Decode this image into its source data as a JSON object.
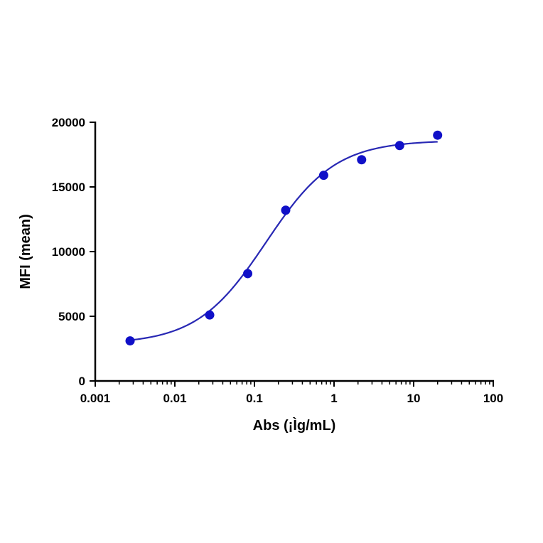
{
  "chart_data": {
    "type": "scatter",
    "title": "",
    "xlabel": "Abs (¡Ìg/mL)",
    "ylabel": "MFI (mean)",
    "x_scale": "log",
    "xlim": [
      0.001,
      100
    ],
    "ylim": [
      0,
      20000
    ],
    "x_ticks": [
      0.001,
      0.01,
      0.1,
      1,
      10,
      100
    ],
    "x_tick_labels": [
      "0.001",
      "0.01",
      "0.1",
      "1",
      "10",
      "100"
    ],
    "y_ticks": [
      0,
      5000,
      10000,
      15000,
      20000
    ],
    "y_tick_labels": [
      "0",
      "5000",
      "10000",
      "15000",
      "20000"
    ],
    "grid": false,
    "legend": "none",
    "series": [
      {
        "points": [
          {
            "x": 0.00274,
            "y": 3100
          },
          {
            "x": 0.0274,
            "y": 5100
          },
          {
            "x": 0.0823,
            "y": 8300
          },
          {
            "x": 0.247,
            "y": 13200
          },
          {
            "x": 0.741,
            "y": 15900
          },
          {
            "x": 2.22,
            "y": 17100
          },
          {
            "x": 6.67,
            "y": 18200
          },
          {
            "x": 20,
            "y": 19000
          }
        ],
        "fit": {
          "model": "4PL",
          "bottom": 2850,
          "top": 18600,
          "ec50": 0.14,
          "hill": 1.0,
          "x_range": [
            0.00274,
            20
          ]
        }
      }
    ],
    "colors": {
      "points": "#1010c8",
      "curve": "#2828b4",
      "axis": "#000000"
    }
  }
}
